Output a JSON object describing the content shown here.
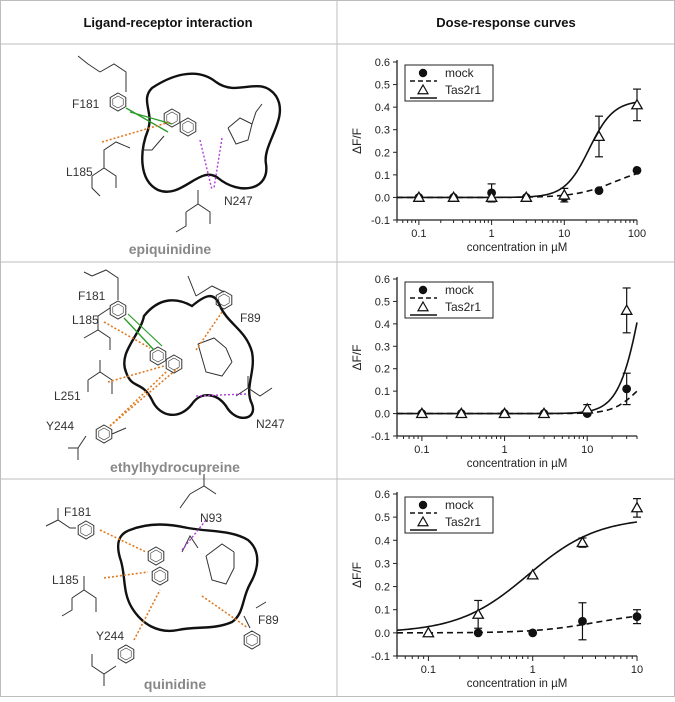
{
  "header": {
    "left": "Ligand-receptor interaction",
    "right": "Dose-response curves"
  },
  "panels": [
    {
      "ligand": "epiquinidine",
      "residues": [
        "F181",
        "L185",
        "N247"
      ]
    },
    {
      "ligand": "ethylhydrocupreine",
      "residues": [
        "F181",
        "L185",
        "F89",
        "L251",
        "Y244",
        "N247"
      ]
    },
    {
      "ligand": "quinidine",
      "residues": [
        "F181",
        "N93",
        "L185",
        "F89",
        "Y244"
      ]
    }
  ],
  "chart_data": [
    {
      "type": "line",
      "xlabel": "concentration in µM",
      "ylabel": "ΔF/F",
      "xscale": "log",
      "xlim": [
        0.05,
        100
      ],
      "ylim": [
        -0.1,
        0.6
      ],
      "yticks": [
        "-0.1",
        "0.0",
        "0.1",
        "0.2",
        "0.3",
        "0.4",
        "0.5",
        "0.6"
      ],
      "xticks": [
        "0.1",
        "1",
        "10",
        "100"
      ],
      "xtick_values": [
        0.1,
        1,
        10,
        100
      ],
      "legend": "top-left",
      "series": [
        {
          "name": "mock",
          "marker": "circle",
          "line": "dashed",
          "x": [
            0.1,
            0.3,
            1,
            3,
            10,
            30,
            100
          ],
          "y": [
            0.0,
            0.0,
            0.02,
            0.0,
            0.0,
            0.03,
            0.12
          ],
          "err": [
            0.01,
            0.01,
            0.04,
            0.01,
            0.01,
            0.01,
            0.01
          ],
          "fit": {
            "bottom": 0.0,
            "top": 0.14,
            "ec50": 50,
            "hill": 1.6
          }
        },
        {
          "name": "Tas2r1",
          "marker": "triangle",
          "line": "solid",
          "x": [
            0.1,
            0.3,
            1,
            3,
            10,
            30,
            100
          ],
          "y": [
            0.0,
            0.0,
            0.0,
            0.0,
            0.01,
            0.27,
            0.41
          ],
          "err": [
            0.01,
            0.01,
            0.01,
            0.01,
            0.03,
            0.09,
            0.07
          ],
          "fit": {
            "bottom": 0.0,
            "top": 0.43,
            "ec50": 22,
            "hill": 2.6
          }
        }
      ]
    },
    {
      "type": "line",
      "xlabel": "concentration in µM",
      "ylabel": "ΔF/F",
      "xscale": "log",
      "xlim": [
        0.05,
        40
      ],
      "ylim": [
        -0.1,
        0.6
      ],
      "yticks": [
        "-0.1",
        "0.0",
        "0.1",
        "0.2",
        "0.3",
        "0.4",
        "0.5",
        "0.6"
      ],
      "xticks": [
        "0.1",
        "1",
        "10"
      ],
      "xtick_values": [
        0.1,
        1,
        10
      ],
      "legend": "top-left",
      "series": [
        {
          "name": "mock",
          "marker": "circle",
          "line": "dashed",
          "x": [
            0.1,
            0.3,
            1,
            3,
            10,
            30
          ],
          "y": [
            0.0,
            0.0,
            0.0,
            0.0,
            0.0,
            0.11
          ],
          "err": [
            0.01,
            0.01,
            0.01,
            0.01,
            0.01,
            0.07
          ],
          "fit": {
            "bottom": 0.0,
            "top": 0.2,
            "ec50": 40,
            "hill": 3
          }
        },
        {
          "name": "Tas2r1",
          "marker": "triangle",
          "line": "solid",
          "x": [
            0.1,
            0.3,
            1,
            3,
            10,
            30
          ],
          "y": [
            0.0,
            0.0,
            0.0,
            0.0,
            0.02,
            0.46
          ],
          "err": [
            0.01,
            0.01,
            0.01,
            0.01,
            0.02,
            0.1
          ],
          "fit": {
            "bottom": 0.0,
            "top": 1.2,
            "ec50": 50,
            "hill": 3
          }
        }
      ]
    },
    {
      "type": "line",
      "xlabel": "concentration in µM",
      "ylabel": "ΔF/F",
      "xscale": "log",
      "xlim": [
        0.05,
        10
      ],
      "ylim": [
        -0.1,
        0.6
      ],
      "yticks": [
        "-0.1",
        "0.0",
        "0.1",
        "0.2",
        "0.3",
        "0.4",
        "0.5",
        "0.6"
      ],
      "xticks": [
        "0.1",
        "1",
        "10"
      ],
      "xtick_values": [
        0.1,
        1,
        10
      ],
      "legend": "top-left",
      "series": [
        {
          "name": "mock",
          "marker": "circle",
          "line": "dashed",
          "x": [
            0.3,
            1,
            3,
            10
          ],
          "y": [
            0.0,
            0.0,
            0.05,
            0.07
          ],
          "err": [
            0.01,
            0.01,
            0.08,
            0.03
          ],
          "fit": {
            "bottom": 0.0,
            "top": 0.09,
            "ec50": 4,
            "hill": 1.5
          }
        },
        {
          "name": "Tas2r1",
          "marker": "triangle",
          "line": "solid",
          "x": [
            0.1,
            0.3,
            1,
            3,
            10
          ],
          "y": [
            0.0,
            0.08,
            0.25,
            0.39,
            0.54
          ],
          "err": [
            0.01,
            0.06,
            0.01,
            0.02,
            0.04
          ],
          "fit": {
            "bottom": 0.0,
            "top": 0.5,
            "ec50": 0.9,
            "hill": 1.3
          }
        }
      ]
    }
  ]
}
